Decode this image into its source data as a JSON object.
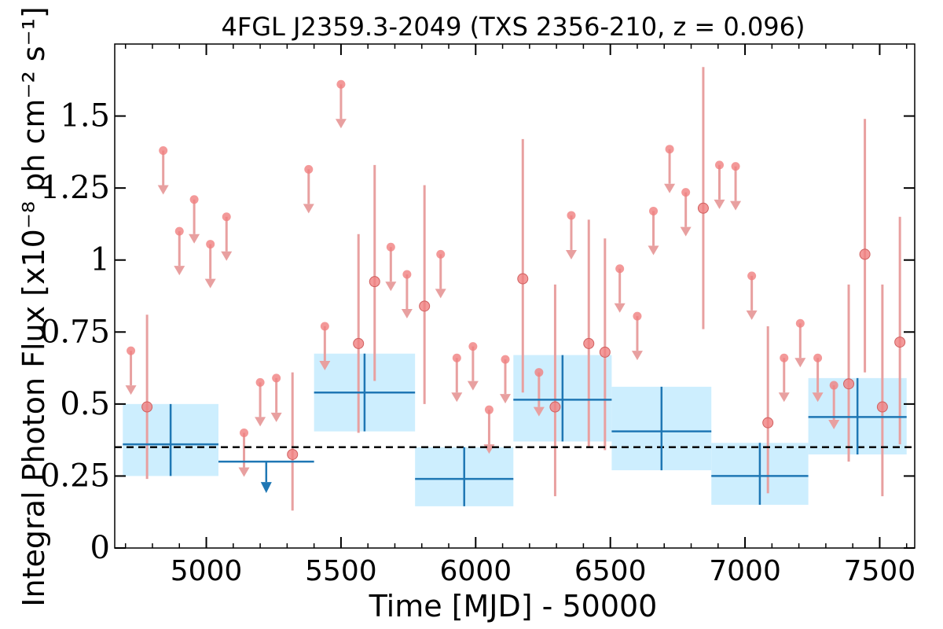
{
  "chart_data": {
    "type": "scatter",
    "title": "4FGL J2359.3-2049 (TXS 2356-210, z = 0.096)",
    "xlabel": "Time [MJD] - 50000",
    "ylabel": "Integral Photon Flux [x10⁻⁸ ph cm⁻² s⁻¹]",
    "xlim": [
      4660,
      7630
    ],
    "ylim": [
      0,
      1.75
    ],
    "x_ticks": [
      5000,
      5500,
      6000,
      6500,
      7000,
      7500
    ],
    "x_tick_labels": [
      "5000",
      "5500",
      "6000",
      "6500",
      "7000",
      "7500"
    ],
    "y_ticks": [
      0,
      0.25,
      0.5,
      0.75,
      1,
      1.25,
      1.5
    ],
    "y_tick_labels": [
      "0",
      "0.25",
      "0.5",
      "0.75",
      "1",
      "1.25",
      "1.5"
    ],
    "grid": false,
    "average_flux": 0.35,
    "long_bins": [
      {
        "x0": 4690,
        "x1": 5045,
        "y": 0.36,
        "ylo": 0.25,
        "yhi": 0.5,
        "upper_limit": false
      },
      {
        "x0": 5045,
        "x1": 5400,
        "y": 0.3,
        "upper_limit": true
      },
      {
        "x0": 5400,
        "x1": 5775,
        "y": 0.54,
        "ylo": 0.405,
        "yhi": 0.675,
        "upper_limit": false
      },
      {
        "x0": 5775,
        "x1": 6140,
        "y": 0.24,
        "ylo": 0.145,
        "yhi": 0.35,
        "upper_limit": false
      },
      {
        "x0": 6140,
        "x1": 6505,
        "y": 0.515,
        "ylo": 0.37,
        "yhi": 0.67,
        "upper_limit": false
      },
      {
        "x0": 6505,
        "x1": 6875,
        "y": 0.405,
        "ylo": 0.27,
        "yhi": 0.56,
        "upper_limit": false
      },
      {
        "x0": 6875,
        "x1": 7235,
        "y": 0.25,
        "ylo": 0.15,
        "yhi": 0.365,
        "upper_limit": false
      },
      {
        "x0": 7235,
        "x1": 7600,
        "y": 0.455,
        "ylo": 0.325,
        "yhi": 0.59,
        "upper_limit": false
      }
    ],
    "short_bins_detections": [
      {
        "x": 4780,
        "y": 0.49,
        "ylo": 0.24,
        "yhi": 0.81
      },
      {
        "x": 5320,
        "y": 0.325,
        "ylo": 0.13,
        "yhi": 0.61
      },
      {
        "x": 5565,
        "y": 0.71,
        "ylo": 0.4,
        "yhi": 1.09
      },
      {
        "x": 5625,
        "y": 0.925,
        "ylo": 0.58,
        "yhi": 1.33
      },
      {
        "x": 5810,
        "y": 0.84,
        "ylo": 0.5,
        "yhi": 1.26
      },
      {
        "x": 6175,
        "y": 0.935,
        "ylo": 0.54,
        "yhi": 1.42
      },
      {
        "x": 6295,
        "y": 0.49,
        "ylo": 0.18,
        "yhi": 0.915
      },
      {
        "x": 6420,
        "y": 0.71,
        "ylo": 0.35,
        "yhi": 1.14
      },
      {
        "x": 6480,
        "y": 0.68,
        "ylo": 0.34,
        "yhi": 1.075
      },
      {
        "x": 6845,
        "y": 1.18,
        "ylo": 0.76,
        "yhi": 1.67
      },
      {
        "x": 7085,
        "y": 0.435,
        "ylo": 0.19,
        "yhi": 0.77
      },
      {
        "x": 7385,
        "y": 0.57,
        "ylo": 0.3,
        "yhi": 0.915
      },
      {
        "x": 7445,
        "y": 1.02,
        "ylo": 0.61,
        "yhi": 1.49
      },
      {
        "x": 7510,
        "y": 0.49,
        "ylo": 0.18,
        "yhi": 0.915
      },
      {
        "x": 7575,
        "y": 0.715,
        "ylo": 0.36,
        "yhi": 1.15
      }
    ],
    "short_bins_upper_limits": [
      {
        "x": 4720,
        "y": 0.685
      },
      {
        "x": 4840,
        "y": 1.38
      },
      {
        "x": 4900,
        "y": 1.1
      },
      {
        "x": 4955,
        "y": 1.21
      },
      {
        "x": 5015,
        "y": 1.055
      },
      {
        "x": 5075,
        "y": 1.15
      },
      {
        "x": 5140,
        "y": 0.4
      },
      {
        "x": 5200,
        "y": 0.575
      },
      {
        "x": 5260,
        "y": 0.59
      },
      {
        "x": 5380,
        "y": 1.315
      },
      {
        "x": 5440,
        "y": 0.77
      },
      {
        "x": 5500,
        "y": 1.61
      },
      {
        "x": 5685,
        "y": 1.045
      },
      {
        "x": 5745,
        "y": 0.95
      },
      {
        "x": 5870,
        "y": 1.02
      },
      {
        "x": 5930,
        "y": 0.66
      },
      {
        "x": 5990,
        "y": 0.7
      },
      {
        "x": 6050,
        "y": 0.48
      },
      {
        "x": 6110,
        "y": 0.655
      },
      {
        "x": 6235,
        "y": 0.61
      },
      {
        "x": 6355,
        "y": 1.155
      },
      {
        "x": 6535,
        "y": 0.97
      },
      {
        "x": 6600,
        "y": 0.805
      },
      {
        "x": 6660,
        "y": 1.17
      },
      {
        "x": 6720,
        "y": 1.385
      },
      {
        "x": 6780,
        "y": 1.235
      },
      {
        "x": 6905,
        "y": 1.33
      },
      {
        "x": 6965,
        "y": 1.325
      },
      {
        "x": 7025,
        "y": 0.945
      },
      {
        "x": 7145,
        "y": 0.66
      },
      {
        "x": 7205,
        "y": 0.78
      },
      {
        "x": 7270,
        "y": 0.66
      },
      {
        "x": 7330,
        "y": 0.565
      }
    ]
  },
  "colors": {
    "long_bin_marker": "#1f77b4",
    "long_bin_band": "#cdeefe",
    "short_bin_marker": "#f08080",
    "short_bin_errorbar": "#e8a0a0",
    "average_line": "#000000",
    "axis": "#000000"
  }
}
